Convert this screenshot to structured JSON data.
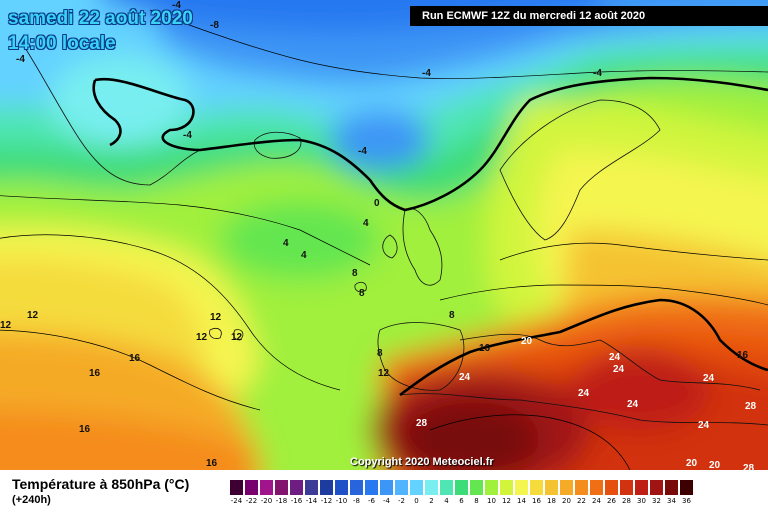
{
  "title": {
    "date": "samedi 22 août 2020",
    "time": "14:00 locale"
  },
  "run_banner": "Run ECMWF 12Z du mercredi 12 août 2020",
  "copyright": "Copyright 2020 Meteociel.fr",
  "legend": {
    "parameter": "Température à 850hPa (°C)",
    "lead_time": "(+240h)",
    "ticks": [
      "-24",
      "-22",
      "-20",
      "-18",
      "-16",
      "-14",
      "-12",
      "-10",
      "-8",
      "-6",
      "-4",
      "-2",
      "0",
      "2",
      "4",
      "6",
      "8",
      "10",
      "12",
      "14",
      "16",
      "18",
      "20",
      "22",
      "24",
      "26",
      "28",
      "30",
      "32",
      "34",
      "36"
    ],
    "colors": [
      "#3c0032",
      "#78006e",
      "#a0148c",
      "#82146e",
      "#6e1e82",
      "#3c3c96",
      "#1e3ca0",
      "#1e50c8",
      "#2864dc",
      "#2878f0",
      "#3c96f5",
      "#50b4ff",
      "#64d2ff",
      "#78eef0",
      "#50e6b4",
      "#3cdc78",
      "#64e650",
      "#a0f03c",
      "#d2f53c",
      "#f5f550",
      "#f5dc3c",
      "#f5c332",
      "#f5aa28",
      "#f58c1e",
      "#f06e14",
      "#e6500f",
      "#d2320f",
      "#be1e14",
      "#a01414",
      "#780a0a",
      "#3c0000"
    ]
  },
  "contour_labels": {
    "m8": "-8",
    "m4": "-4",
    "zero": "0",
    "p4": "4",
    "p8": "8",
    "p12": "12",
    "p16": "16",
    "p20": "20",
    "p24": "24",
    "p28": "28"
  }
}
